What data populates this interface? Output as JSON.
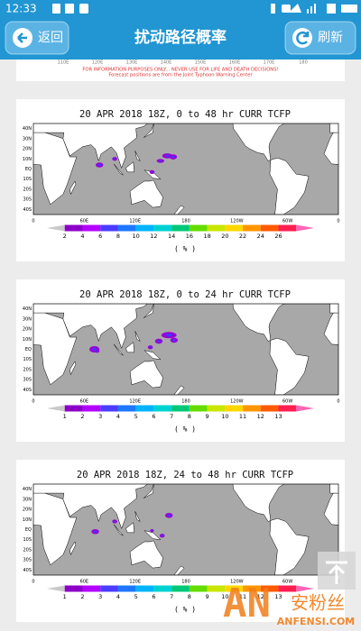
{
  "status_bar": {
    "time": "12:33"
  },
  "header": {
    "back": "返回",
    "title": "扰动路径概率",
    "refresh": "刷新"
  },
  "top_strip": {
    "lon_labels": [
      "110E",
      "120E",
      "130E",
      "140E",
      "150E",
      "160E",
      "170E",
      "180"
    ],
    "notice": [
      "FOR INFORMATION PURPOSES ONLY... NEVER USE FOR LIFE AND DEATH DECISIONS!",
      "Forecast positions are from the Joint Typhoon Warning Center"
    ]
  },
  "maps": [
    {
      "title": "20 APR 2018 18Z,  0 to  48 hr CURR TCFP",
      "lat_labels": [
        "40N",
        "30N",
        "20N",
        "10N",
        "EQ",
        "10S",
        "20S",
        "30S",
        "40S"
      ],
      "lon_labels": [
        "0",
        "60E",
        "120E",
        "180",
        "120W",
        "60W",
        "0"
      ],
      "colorbar_labels": [
        "2",
        "4",
        "6",
        "8",
        "10",
        "12",
        "14",
        "16",
        "18",
        "20",
        "22",
        "24",
        "26"
      ],
      "unit": "( % )"
    },
    {
      "title": "20 APR 2018 18Z,   0 to  24 hr CURR TCFP",
      "lat_labels": [
        "40N",
        "30N",
        "20N",
        "10N",
        "EQ",
        "10S",
        "20S",
        "30S",
        "40S"
      ],
      "lon_labels": [
        "0",
        "60E",
        "120E",
        "180",
        "120W",
        "60W",
        "0"
      ],
      "colorbar_labels": [
        "1",
        "2",
        "3",
        "4",
        "5",
        "6",
        "7",
        "8",
        "9",
        "10",
        "11",
        "12",
        "13"
      ],
      "unit": "( % )"
    },
    {
      "title": "20 APR 2018 18Z,  24 to  48 hr CURR TCFP",
      "lat_labels": [
        "40N",
        "30N",
        "20N",
        "10N",
        "EQ",
        "10S",
        "20S",
        "30S",
        "40S"
      ],
      "lon_labels": [
        "0",
        "60E",
        "120E",
        "180",
        "120W",
        "60W",
        "0"
      ],
      "colorbar_labels": [
        "1",
        "2",
        "3",
        "4",
        "5",
        "6",
        "7",
        "8",
        "9",
        "10",
        "11",
        "12",
        "13"
      ],
      "unit": "( % )"
    }
  ],
  "watermark": {
    "cn": "安粉丝",
    "en": "ANFENSI.COM"
  }
}
